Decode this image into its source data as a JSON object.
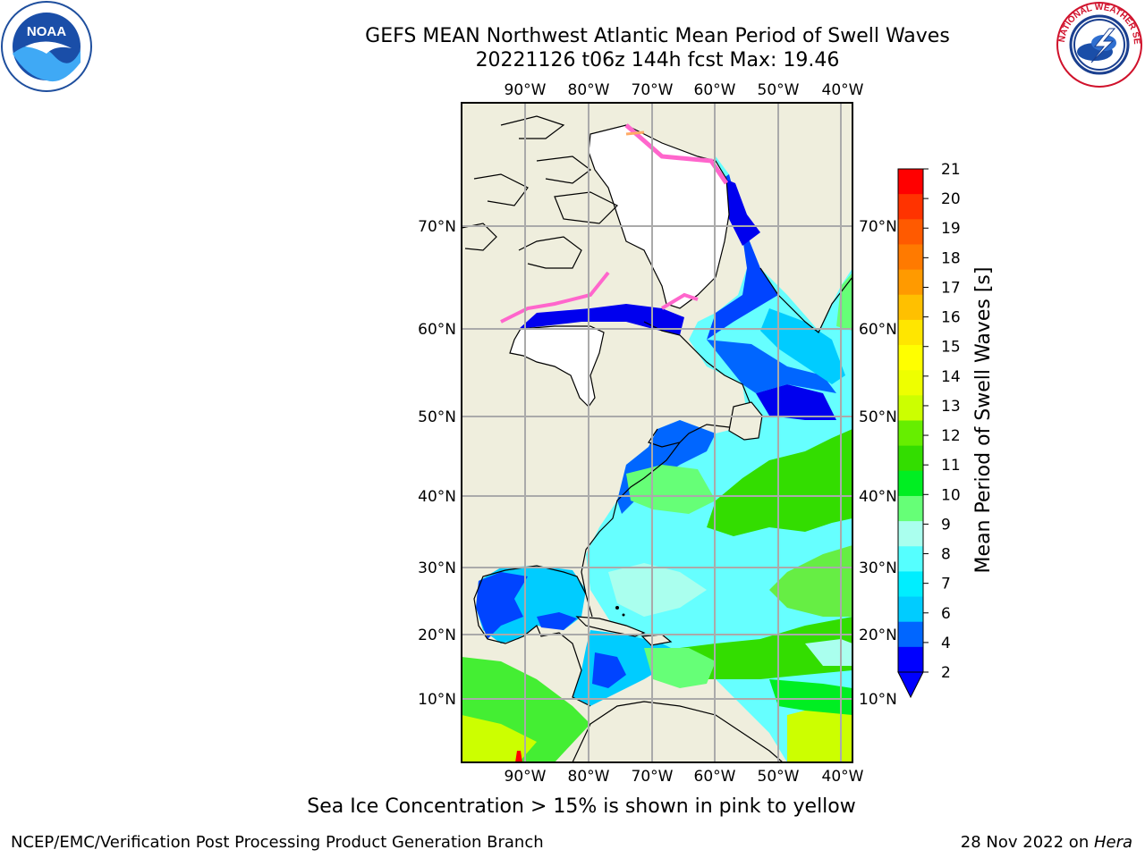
{
  "title_line1": "GEFS MEAN Northwest Atlantic Mean Period of Swell Waves",
  "title_line2": "20221126 t06z 144h fcst   Max: 19.46",
  "logos": {
    "left": {
      "name": "noaa-logo",
      "text": "NOAA"
    },
    "right": {
      "name": "nws-logo",
      "text": "NATIONAL WEATHER SERVICE"
    }
  },
  "lon_labels": [
    "90°W",
    "80°W",
    "70°W",
    "60°W",
    "50°W",
    "40°W"
  ],
  "lat_labels": [
    "70°N",
    "60°N",
    "50°N",
    "40°N",
    "30°N",
    "20°N",
    "10°N"
  ],
  "colorbar": {
    "label": "Mean Period of Swell Waves [s]",
    "ticks": [
      "21",
      "20",
      "19",
      "18",
      "17",
      "16",
      "15",
      "14",
      "13",
      "12",
      "11",
      "10",
      "9",
      "8",
      "7",
      "6",
      "4",
      "2"
    ],
    "colors": [
      "#ff0000",
      "#ff3300",
      "#ff5a00",
      "#ff7a00",
      "#ff9a00",
      "#ffc000",
      "#ffe600",
      "#ffff00",
      "#eeff00",
      "#ccff00",
      "#66ee00",
      "#33dd00",
      "#00ee22",
      "#66ff77",
      "#aaffee",
      "#55ffff",
      "#00eeff",
      "#00ccff",
      "#0066ff",
      "#0000ff"
    ],
    "extend": "min"
  },
  "note": "Sea Ice Concentration > 15% is shown in pink to yellow",
  "footer_left": "NCEP/EMC/Verification Post Processing Product Generation Branch",
  "footer_right_date": "28 Nov 2022 on ",
  "footer_right_system": "Hera"
}
